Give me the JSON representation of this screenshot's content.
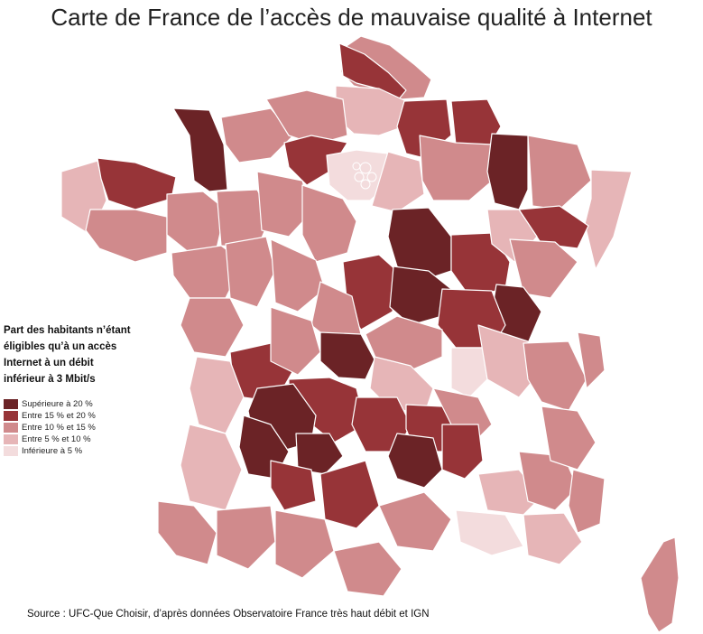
{
  "title": "Carte de France de l’accès de mauvaise qualité à Internet",
  "legend": {
    "title_lines": [
      "Part des habitants n’étant",
      "éligibles qu’à un accès",
      "Internet à un débit",
      "inférieur à 3 Mbit/s"
    ],
    "classes": [
      {
        "label": "Supérieure à 20 %",
        "color": "#6b2326"
      },
      {
        "label": "Entre 15 % et 20 %",
        "color": "#973438"
      },
      {
        "label": "Entre 10 % et 15 %",
        "color": "#d08a8c"
      },
      {
        "label": "Entre 5 % et 10 %",
        "color": "#e6b5b7"
      },
      {
        "label": "Inférieure à 5 %",
        "color": "#f3dcdd"
      }
    ]
  },
  "source": "Source : UFC-Que Choisir, d’après données Observatoire France très haut débit et IGN",
  "colors": {
    "border": "#ffffff",
    "outline": "#8a6d6f"
  }
}
